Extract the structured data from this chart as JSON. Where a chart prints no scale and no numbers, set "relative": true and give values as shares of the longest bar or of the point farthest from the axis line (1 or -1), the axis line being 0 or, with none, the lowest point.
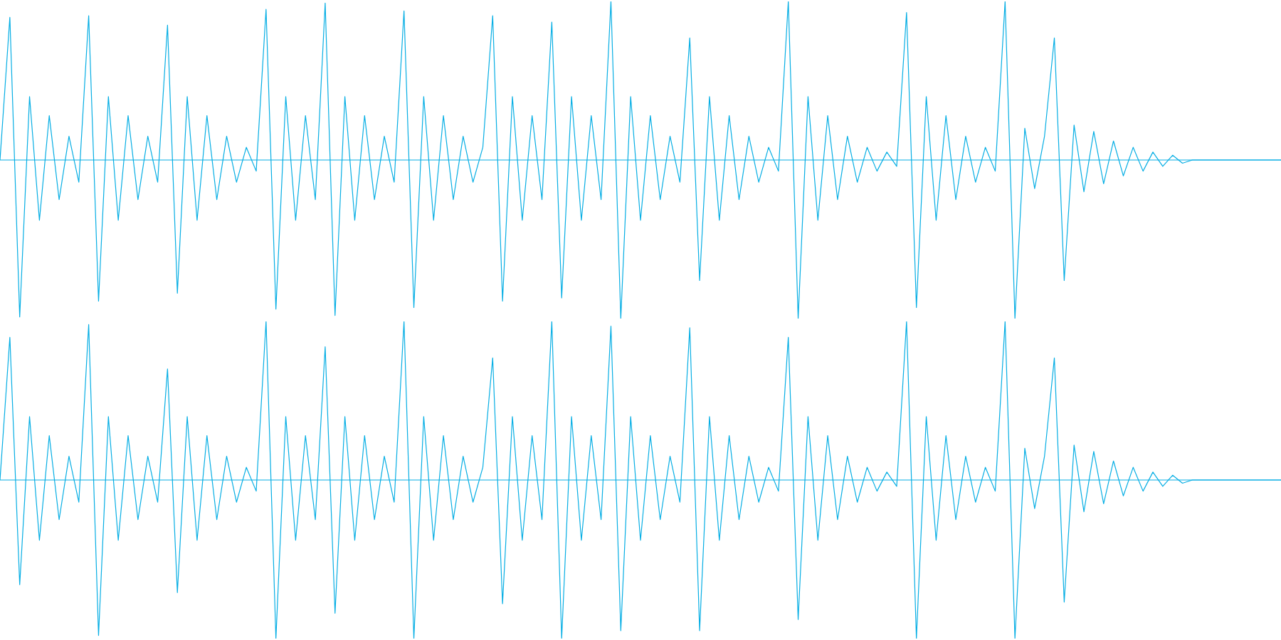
{
  "chart_data": [
    {
      "type": "line",
      "relative": true,
      "categories": [
        null,
        null,
        null,
        null,
        null,
        null,
        null,
        null,
        null,
        null,
        null,
        null,
        null,
        null,
        null,
        null,
        null,
        null,
        null,
        null,
        null,
        null,
        null,
        null,
        null,
        null,
        null,
        null,
        null,
        null,
        null,
        null,
        null,
        null,
        null,
        null,
        null,
        null,
        null,
        null,
        null,
        null,
        null,
        null,
        null,
        null,
        null,
        null,
        null,
        null,
        null,
        null,
        null,
        null,
        null,
        null,
        null,
        null,
        null,
        null,
        null,
        null,
        null,
        null,
        null,
        null,
        null,
        null,
        null,
        null,
        null,
        null,
        null,
        null,
        null,
        null,
        null,
        null,
        null,
        null,
        null,
        null,
        null,
        null,
        null,
        null,
        null,
        null,
        null,
        null,
        null,
        null,
        null,
        null,
        null,
        null,
        null,
        null,
        null,
        null,
        null,
        null,
        null,
        null,
        null,
        null,
        null,
        null,
        null,
        null,
        null,
        null,
        null,
        null,
        null,
        null,
        null,
        null,
        null,
        null,
        null,
        null,
        null,
        null,
        null,
        null,
        null,
        null,
        null,
        null,
        null
      ],
      "ref_lines": [
        {
          "axis": "y",
          "value": 0,
          "color": "#06aee4"
        }
      ],
      "series": [
        {
          "color": "#06aee4",
          "values": [
            0,
            0.9,
            -0.99,
            0.4,
            -0.38,
            0.28,
            -0.25,
            0.15,
            -0.14,
            0.91,
            -0.89,
            0.4,
            -0.38,
            0.28,
            -0.25,
            0.15,
            -0.14,
            0.85,
            -0.84,
            0.4,
            -0.38,
            0.28,
            -0.25,
            0.15,
            -0.14,
            0.08,
            -0.07,
            0.95,
            -0.94,
            0.4,
            -0.38,
            0.28,
            -0.25,
            0.99,
            -0.98,
            0.4,
            -0.38,
            0.28,
            -0.25,
            0.15,
            -0.14,
            0.94,
            -0.93,
            0.4,
            -0.38,
            0.28,
            -0.25,
            0.15,
            -0.14,
            0.08,
            0.91,
            -0.89,
            0.4,
            -0.38,
            0.28,
            -0.25,
            0.87,
            -0.87,
            0.4,
            -0.38,
            0.28,
            -0.25,
            1,
            -1,
            0.4,
            -0.38,
            0.28,
            -0.25,
            0.15,
            -0.14,
            0.77,
            -0.76,
            0.4,
            -0.38,
            0.28,
            -0.25,
            0.15,
            -0.14,
            0.08,
            -0.07,
            1,
            -1,
            0.4,
            -0.38,
            0.28,
            -0.25,
            0.15,
            -0.14,
            0.08,
            -0.07,
            0.05,
            -0.04,
            0.93,
            -0.93,
            0.4,
            -0.38,
            0.28,
            -0.25,
            0.15,
            -0.14,
            0.08,
            -0.07,
            1,
            -1,
            0.2,
            -0.18,
            0.15,
            0.77,
            -0.76,
            0.22,
            -0.2,
            0.18,
            -0.15,
            0.12,
            -0.1,
            0.08,
            -0.07,
            0.05,
            -0.04,
            0.03,
            -0.02,
            0,
            0,
            0,
            0,
            0,
            0,
            0,
            0,
            0,
            0
          ]
        }
      ]
    },
    {
      "type": "line",
      "relative": true,
      "categories": [
        null,
        null,
        null,
        null,
        null,
        null,
        null,
        null,
        null,
        null,
        null,
        null,
        null,
        null,
        null,
        null,
        null,
        null,
        null,
        null,
        null,
        null,
        null,
        null,
        null,
        null,
        null,
        null,
        null,
        null,
        null,
        null,
        null,
        null,
        null,
        null,
        null,
        null,
        null,
        null,
        null,
        null,
        null,
        null,
        null,
        null,
        null,
        null,
        null,
        null,
        null,
        null,
        null,
        null,
        null,
        null,
        null,
        null,
        null,
        null,
        null,
        null,
        null,
        null,
        null,
        null,
        null,
        null,
        null,
        null,
        null,
        null,
        null,
        null,
        null,
        null,
        null,
        null,
        null,
        null,
        null,
        null,
        null,
        null,
        null,
        null,
        null,
        null,
        null,
        null,
        null,
        null,
        null,
        null,
        null,
        null,
        null,
        null,
        null,
        null,
        null,
        null,
        null,
        null,
        null,
        null,
        null,
        null,
        null,
        null,
        null,
        null,
        null,
        null,
        null,
        null,
        null,
        null,
        null,
        null,
        null,
        null,
        null,
        null,
        null,
        null,
        null,
        null,
        null,
        null,
        null
      ],
      "ref_lines": [
        {
          "axis": "y",
          "value": 0,
          "color": "#06aee4"
        }
      ],
      "series": [
        {
          "color": "#06aee4",
          "values": [
            0,
            0.9,
            -0.66,
            0.4,
            -0.38,
            0.28,
            -0.25,
            0.15,
            -0.14,
            0.98,
            -0.98,
            0.4,
            -0.38,
            0.28,
            -0.25,
            0.15,
            -0.14,
            0.7,
            -0.71,
            0.4,
            -0.38,
            0.28,
            -0.25,
            0.15,
            -0.14,
            0.08,
            -0.07,
            1,
            -1,
            0.4,
            -0.38,
            0.28,
            -0.25,
            0.84,
            -0.84,
            0.4,
            -0.38,
            0.28,
            -0.25,
            0.15,
            -0.14,
            1,
            -1,
            0.4,
            -0.38,
            0.28,
            -0.25,
            0.15,
            -0.14,
            0.08,
            0.77,
            -0.78,
            0.4,
            -0.38,
            0.28,
            -0.25,
            1,
            -1,
            0.4,
            -0.38,
            0.28,
            -0.25,
            0.97,
            -0.95,
            0.4,
            -0.38,
            0.28,
            -0.25,
            0.15,
            -0.14,
            0.96,
            -0.95,
            0.4,
            -0.38,
            0.28,
            -0.25,
            0.15,
            -0.14,
            0.08,
            -0.07,
            0.9,
            -0.88,
            0.4,
            -0.38,
            0.28,
            -0.25,
            0.15,
            -0.14,
            0.08,
            -0.07,
            0.05,
            -0.04,
            1,
            -1,
            0.4,
            -0.38,
            0.28,
            -0.25,
            0.15,
            -0.14,
            0.08,
            -0.07,
            1,
            -1,
            0.2,
            -0.18,
            0.15,
            0.77,
            -0.77,
            0.22,
            -0.2,
            0.18,
            -0.15,
            0.12,
            -0.1,
            0.08,
            -0.07,
            0.05,
            -0.04,
            0.03,
            -0.02,
            0,
            0,
            0,
            0,
            0,
            0,
            0,
            0,
            0,
            0
          ]
        }
      ]
    }
  ]
}
